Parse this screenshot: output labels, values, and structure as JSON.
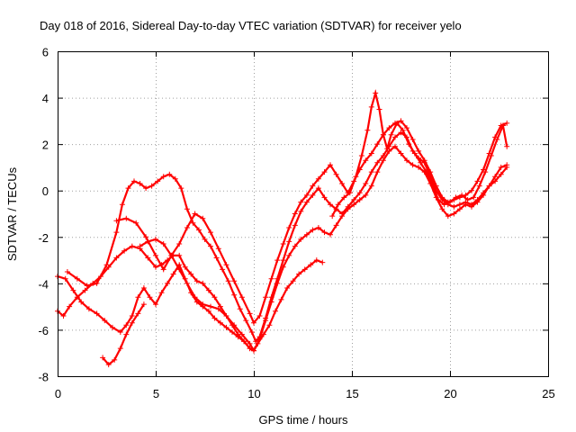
{
  "chart_data": {
    "type": "scatter",
    "title": "Day 018 of 2016, Sidereal Day-to-day VTEC variation (SDTVAR) for receiver yelo",
    "xlabel": "GPS time / hours",
    "ylabel": "SDTVAR / TECUs",
    "xlim": [
      0,
      25
    ],
    "ylim": [
      -8,
      6
    ],
    "xticks": [
      "0",
      "5",
      "10",
      "15",
      "20",
      "25"
    ],
    "yticks": [
      "-8",
      "-6",
      "-4",
      "-2",
      "0",
      "2",
      "4",
      "6"
    ],
    "grid": true,
    "marker": "plus",
    "color": "#ff0000",
    "series": [
      {
        "x": [
          0.0,
          0.3,
          0.6,
          1.0,
          1.4,
          1.8,
          2.2,
          2.6,
          3.0,
          3.4,
          3.8,
          4.2,
          4.6,
          5.0,
          5.3,
          5.6,
          5.9,
          6.2,
          6.5,
          6.8,
          7.1,
          7.4,
          7.7,
          8.0,
          8.3,
          8.6,
          8.9,
          9.2,
          9.5,
          9.8,
          10.0,
          10.2,
          10.5,
          10.8,
          11.1,
          11.4,
          11.7,
          12.0,
          12.3,
          12.6,
          12.9,
          13.2,
          13.5
        ],
        "y": [
          -5.2,
          -5.4,
          -5.0,
          -4.6,
          -4.3,
          -4.0,
          -3.7,
          -3.3,
          -2.9,
          -2.6,
          -2.4,
          -2.5,
          -2.9,
          -3.3,
          -3.2,
          -3.0,
          -2.8,
          -2.8,
          -3.3,
          -3.6,
          -3.9,
          -4.0,
          -4.3,
          -4.6,
          -5.0,
          -5.4,
          -5.8,
          -6.2,
          -6.5,
          -6.8,
          -6.9,
          -6.6,
          -6.2,
          -5.8,
          -5.2,
          -4.7,
          -4.2,
          -3.9,
          -3.6,
          -3.4,
          -3.2,
          -3.0,
          -3.1
        ]
      },
      {
        "x": [
          0.0,
          0.4,
          0.8,
          1.2,
          1.6,
          2.0,
          2.4,
          2.8,
          3.2,
          3.5,
          3.8,
          4.1,
          4.4,
          4.7,
          5.0,
          5.3,
          5.6,
          5.9,
          6.2,
          6.5,
          6.8,
          7.1,
          7.4,
          7.7,
          8.0,
          8.3,
          8.6,
          8.9,
          9.2,
          9.5,
          9.8,
          10.0
        ],
        "y": [
          -3.7,
          -3.8,
          -4.3,
          -4.8,
          -5.1,
          -5.3,
          -5.6,
          -5.9,
          -6.1,
          -5.8,
          -5.4,
          -4.6,
          -4.2,
          -4.6,
          -4.9,
          -4.4,
          -4.0,
          -3.6,
          -3.2,
          -3.8,
          -4.4,
          -4.8,
          -5.0,
          -5.2,
          -5.5,
          -5.7,
          -5.9,
          -6.1,
          -6.3,
          -6.5,
          -6.8,
          -6.9
        ]
      },
      {
        "x": [
          2.3,
          2.6,
          2.9,
          3.2,
          3.5,
          3.8,
          4.1,
          4.4
        ],
        "y": [
          -7.2,
          -7.5,
          -7.3,
          -6.8,
          -6.2,
          -5.7,
          -5.3,
          -4.9
        ]
      },
      {
        "x": [
          0.5,
          1.0,
          1.5,
          2.0,
          2.5,
          3.0,
          3.3,
          3.6,
          3.9,
          4.2,
          4.5,
          4.8,
          5.1,
          5.4,
          5.7,
          6.0,
          6.3,
          6.6,
          6.9,
          7.2,
          7.5,
          7.8,
          8.1,
          8.4,
          8.7,
          9.0,
          9.3,
          9.6,
          9.9,
          10.1,
          10.3,
          10.6,
          10.9,
          11.2,
          11.5,
          11.8,
          12.1,
          12.4,
          12.7,
          13.0,
          13.3,
          13.6,
          13.9,
          14.2,
          14.5,
          14.8,
          15.1,
          15.4,
          15.7,
          16.0,
          16.3,
          16.6,
          16.9,
          17.2,
          17.5,
          17.8,
          18.1,
          18.4,
          18.7,
          19.0,
          19.3,
          19.6,
          19.9,
          20.2,
          20.5,
          20.8,
          21.1,
          21.4,
          21.7,
          22.0,
          22.3,
          22.6,
          22.9
        ],
        "y": [
          -3.5,
          -3.8,
          -4.1,
          -4.0,
          -3.2,
          -1.8,
          -0.6,
          0.1,
          0.4,
          0.3,
          0.1,
          0.2,
          0.4,
          0.6,
          0.7,
          0.5,
          0.1,
          -0.8,
          -1.4,
          -1.7,
          -2.1,
          -2.4,
          -2.9,
          -3.4,
          -3.9,
          -4.5,
          -5.1,
          -5.6,
          -6.1,
          -6.5,
          -6.3,
          -5.5,
          -4.6,
          -3.8,
          -3.0,
          -2.2,
          -1.5,
          -0.9,
          -0.5,
          -0.2,
          0.1,
          -0.3,
          -0.6,
          -0.8,
          -1.0,
          -0.7,
          -0.4,
          -0.1,
          0.3,
          0.8,
          1.2,
          1.5,
          1.9,
          2.3,
          2.5,
          2.3,
          1.7,
          1.4,
          1.2,
          0.6,
          0.0,
          -0.4,
          -0.6,
          -0.7,
          -0.6,
          -0.5,
          -0.6,
          -0.4,
          -0.1,
          0.2,
          0.4,
          0.7,
          1.0
        ]
      },
      {
        "x": [
          3.0,
          3.5,
          4.0,
          4.5,
          5.0,
          5.4,
          5.8,
          6.2,
          6.6,
          7.0,
          7.4,
          7.8,
          8.2,
          8.6,
          9.0,
          9.4,
          9.8,
          10.0,
          10.3,
          10.6,
          10.9,
          11.2,
          11.5,
          11.8,
          12.1,
          12.4,
          12.7,
          13.0,
          13.3,
          13.6,
          13.9,
          14.2,
          14.5,
          14.8,
          15.1,
          15.4,
          15.7,
          16.0,
          16.3,
          16.6,
          16.9,
          17.2,
          17.5,
          17.8,
          18.1,
          18.4,
          18.7,
          19.0,
          19.3,
          19.6,
          19.9,
          20.2,
          20.5,
          20.8,
          21.1,
          21.4,
          21.7,
          22.0,
          22.3,
          22.6,
          22.9
        ],
        "y": [
          -1.3,
          -1.2,
          -1.4,
          -2.0,
          -2.8,
          -3.4,
          -2.8,
          -2.3,
          -1.6,
          -1.0,
          -1.2,
          -1.8,
          -2.5,
          -3.2,
          -3.9,
          -4.6,
          -5.3,
          -5.7,
          -5.4,
          -4.6,
          -3.8,
          -3.0,
          -2.3,
          -1.6,
          -1.0,
          -0.5,
          -0.2,
          0.2,
          0.5,
          0.8,
          1.1,
          0.7,
          0.3,
          -0.1,
          0.4,
          0.9,
          1.3,
          1.6,
          2.0,
          2.4,
          2.7,
          2.9,
          3.0,
          2.7,
          2.2,
          1.7,
          1.3,
          0.8,
          0.2,
          -0.3,
          -0.5,
          -0.4,
          -0.3,
          -0.2,
          0.0,
          0.4,
          0.9,
          1.6,
          2.3,
          2.8,
          2.9
        ]
      },
      {
        "x": [
          4.2,
          4.6,
          5.0,
          5.4,
          5.8,
          6.2,
          6.6,
          7.0,
          7.4,
          7.8,
          8.2,
          8.6,
          9.0,
          9.4,
          9.8,
          10.0,
          10.3,
          10.6,
          10.9,
          11.2,
          11.5,
          11.8,
          12.1,
          12.4,
          12.7,
          13.0,
          13.3,
          13.6,
          13.9,
          14.2,
          14.5,
          14.8,
          15.1,
          15.4,
          15.7,
          16.0,
          16.3,
          16.6,
          16.9,
          17.2,
          17.5,
          17.8,
          18.1,
          18.4,
          18.7,
          19.0,
          19.3,
          19.6,
          19.9,
          20.2,
          20.5,
          20.8,
          21.1,
          21.4,
          21.7,
          22.0,
          22.3,
          22.6,
          22.9
        ],
        "y": [
          -2.4,
          -2.2,
          -2.1,
          -2.3,
          -2.8,
          -3.4,
          -4.0,
          -4.6,
          -4.9,
          -5.0,
          -5.1,
          -5.4,
          -5.8,
          -6.2,
          -6.6,
          -6.9,
          -6.4,
          -5.6,
          -4.8,
          -4.0,
          -3.3,
          -2.8,
          -2.4,
          -2.1,
          -1.9,
          -1.7,
          -1.6,
          -1.8,
          -1.9,
          -1.5,
          -1.1,
          -0.8,
          -0.6,
          -0.4,
          -0.2,
          0.2,
          0.8,
          1.3,
          1.7,
          1.9,
          1.6,
          1.3,
          1.1,
          1.0,
          0.8,
          0.3,
          -0.3,
          -0.8,
          -1.1,
          -1.0,
          -0.8,
          -0.6,
          -0.7,
          -0.5,
          -0.2,
          0.2,
          0.6,
          1.0,
          1.1
        ]
      },
      {
        "x": [
          14.0,
          14.3,
          14.6,
          14.9,
          15.2,
          15.5,
          15.8,
          16.0,
          16.2,
          16.4,
          16.6,
          16.8,
          17.0,
          17.3,
          17.6,
          17.9,
          18.2,
          18.5,
          18.8,
          19.1,
          19.4,
          19.7,
          20.0,
          20.3,
          20.6,
          20.9,
          21.2,
          21.5,
          21.8,
          22.1,
          22.4,
          22.7,
          22.9
        ],
        "y": [
          -1.1,
          -0.6,
          -0.3,
          -0.1,
          0.6,
          1.5,
          2.6,
          3.6,
          4.2,
          3.5,
          2.4,
          1.8,
          2.4,
          2.9,
          2.6,
          2.0,
          1.6,
          1.2,
          0.8,
          0.3,
          -0.4,
          -0.6,
          -0.5,
          -0.3,
          -0.2,
          -0.4,
          -0.3,
          0.2,
          0.8,
          1.5,
          2.2,
          2.8,
          1.9
        ]
      }
    ]
  }
}
